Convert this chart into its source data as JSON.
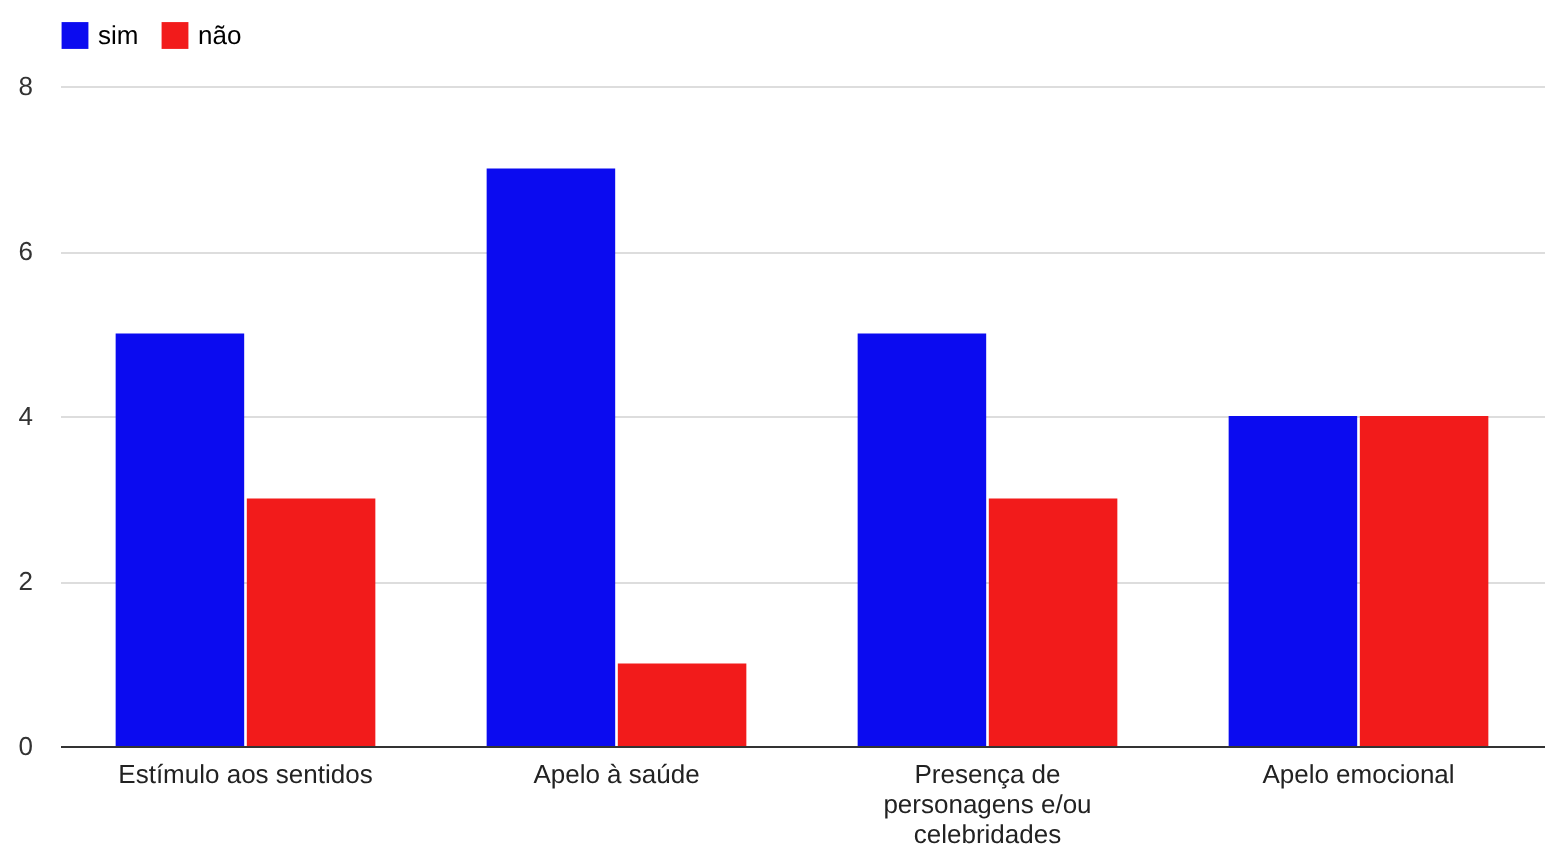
{
  "chart_data": {
    "type": "bar",
    "categories": [
      "Estímulo aos sentidos",
      "Apelo à saúde",
      "Presença de personagens e/ou celebridades",
      "Apelo emocional"
    ],
    "series": [
      {
        "name": "sim",
        "color": "#0b0bf0",
        "values": [
          5,
          7,
          5,
          4
        ]
      },
      {
        "name": "não",
        "color": "#f21b1b",
        "values": [
          3,
          1,
          3,
          4
        ]
      }
    ],
    "ylim": [
      0,
      8
    ],
    "yticks": [
      0,
      2,
      4,
      6,
      8
    ],
    "grid": "y",
    "legend": "top"
  }
}
